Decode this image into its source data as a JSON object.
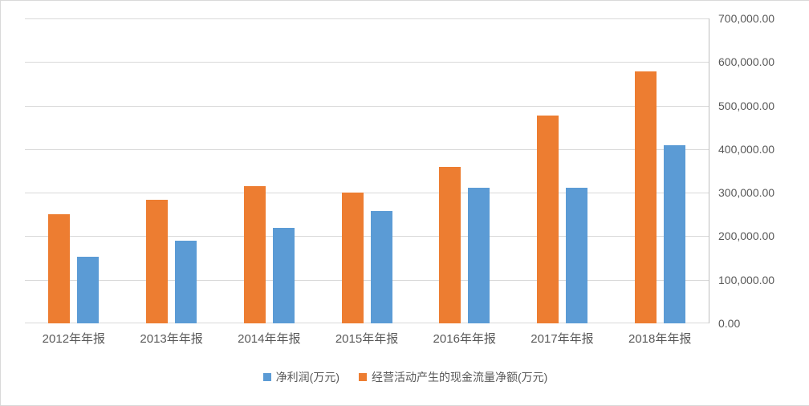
{
  "chart_data": {
    "type": "bar",
    "title": "",
    "categories": [
      "2012年年报",
      "2013年年报",
      "2014年年报",
      "2015年年报",
      "2016年年报",
      "2017年年报",
      "2018年年报"
    ],
    "series": [
      {
        "key": "operating-cash-flow",
        "name": "经营活动产生的现金流量净额(万元)",
        "color": "#ED7D31",
        "values": [
          250000,
          283000,
          315000,
          300000,
          360000,
          477000,
          578000
        ]
      },
      {
        "key": "net-profit",
        "name": "净利润(万元)",
        "color": "#5B9BD5",
        "values": [
          152000,
          190000,
          220000,
          258000,
          312000,
          312000,
          409000
        ]
      }
    ],
    "legend": [
      {
        "key": "net-profit",
        "label": "净利润(万元)",
        "color": "#5B9BD5"
      },
      {
        "key": "operating-cash-flow",
        "label": "经营活动产生的现金流量净额(万元)",
        "color": "#ED7D31"
      }
    ],
    "legend_position": "bottom",
    "y_axis": {
      "side": "right",
      "min": 0,
      "max": 700000,
      "tick_step": 100000,
      "tick_labels": [
        "0.00",
        "100,000.00",
        "200,000.00",
        "300,000.00",
        "400,000.00",
        "500,000.00",
        "600,000.00",
        "700,000.00"
      ]
    },
    "x_axis": {
      "label": ""
    },
    "grid": true,
    "colors": {
      "grid": "#D9D9D9",
      "axis_line": "#BFBFBF",
      "text": "#595959",
      "background": "#FFFFFF"
    }
  }
}
